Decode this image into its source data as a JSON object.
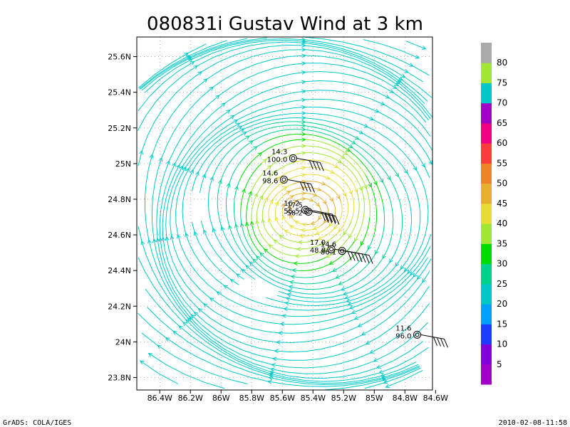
{
  "chart_data": {
    "type": "streamline",
    "title": "080831i Gustav Wind at 3 km",
    "xlabel": "",
    "ylabel": "",
    "xlim": [
      -86.55,
      -84.62
    ],
    "ylim": [
      23.73,
      25.71
    ],
    "x_ticks": [
      {
        "value": -86.4,
        "label": "86.4W"
      },
      {
        "value": -86.2,
        "label": "86.2W"
      },
      {
        "value": -86.0,
        "label": "86W"
      },
      {
        "value": -85.8,
        "label": "85.8W"
      },
      {
        "value": -85.6,
        "label": "85.6W"
      },
      {
        "value": -85.4,
        "label": "85.4W"
      },
      {
        "value": -85.2,
        "label": "85.2W"
      },
      {
        "value": -85.0,
        "label": "85W"
      },
      {
        "value": -84.8,
        "label": "84.8W"
      },
      {
        "value": -84.6,
        "label": "84.6W"
      }
    ],
    "y_ticks": [
      {
        "value": 23.8,
        "label": "23.8N"
      },
      {
        "value": 24.0,
        "label": "24N"
      },
      {
        "value": 24.2,
        "label": "24.2N"
      },
      {
        "value": 24.4,
        "label": "24.4N"
      },
      {
        "value": 24.6,
        "label": "24.6N"
      },
      {
        "value": 24.8,
        "label": "24.8N"
      },
      {
        "value": 25.0,
        "label": "25N"
      },
      {
        "value": 25.2,
        "label": "25.2N"
      },
      {
        "value": 25.4,
        "label": "25.4N"
      },
      {
        "value": 25.6,
        "label": "25.6N"
      }
    ],
    "grid": true,
    "vortex_center": {
      "lon": -85.45,
      "lat": 24.73
    },
    "colorbar": {
      "colors": [
        "#a000c8",
        "#8200dc",
        "#1e3cff",
        "#00a0ff",
        "#00c8c8",
        "#00d28c",
        "#00dc00",
        "#a0e632",
        "#e6dc32",
        "#e6af2d",
        "#f08228",
        "#fa3c3c",
        "#f00082",
        "#a000c8",
        "#00c8c8",
        "#a0e632",
        "#aaaaaa"
      ],
      "labels": [
        "5",
        "10",
        "15",
        "20",
        "25",
        "30",
        "35",
        "40",
        "45",
        "50",
        "55",
        "60",
        "65",
        "70",
        "75",
        "80"
      ]
    },
    "observations": [
      {
        "lon": -85.53,
        "lat": 25.03,
        "speed": "14.3",
        "pressure": "100.0"
      },
      {
        "lon": -85.59,
        "lat": 24.91,
        "speed": "14.6",
        "pressure": "98.6"
      },
      {
        "lon": -85.45,
        "lat": 24.74,
        "speed": "16.2",
        "pressure": "55.5"
      },
      {
        "lon": -85.43,
        "lat": 24.73,
        "speed": "17.5",
        "pressure": "58.2"
      },
      {
        "lon": -85.28,
        "lat": 24.52,
        "speed": "17.0",
        "pressure": "48.8"
      },
      {
        "lon": -85.21,
        "lat": 24.51,
        "speed": "14.6",
        "pressure": "86.1"
      },
      {
        "lon": -84.72,
        "lat": 24.04,
        "speed": "11.6",
        "pressure": "96.0"
      }
    ]
  },
  "footer": {
    "left": "GrADS: COLA/IGES",
    "right": "2010-02-08-11:58"
  }
}
